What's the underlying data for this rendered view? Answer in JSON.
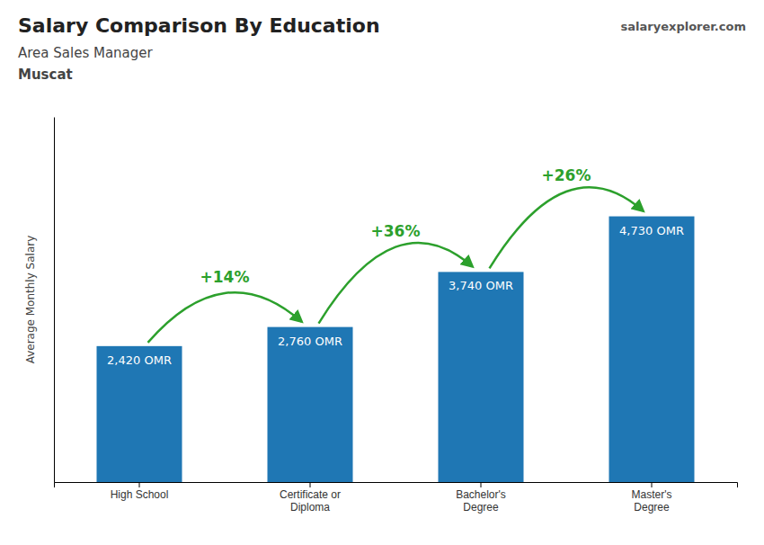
{
  "chart_data": {
    "type": "bar",
    "title": "Salary Comparison By Education",
    "subtitle": [
      "Area Sales Manager",
      "Muscat"
    ],
    "source": "salaryexplorer.com",
    "ylabel": "Average Monthly Salary",
    "categories": [
      "High School",
      "Certificate or\nDiploma",
      "Bachelor's\nDegree",
      "Master's\nDegree"
    ],
    "values": [
      2420,
      2760,
      3740,
      4730
    ],
    "value_labels": [
      "2,420 OMR",
      "2,760 OMR",
      "3,740 OMR",
      "4,730 OMR"
    ],
    "data_labels": true,
    "annotations": [
      "+14%",
      "+36%",
      "+26%"
    ],
    "ylim": [
      0,
      6500
    ],
    "tick_labels": "x",
    "grid": false
  }
}
